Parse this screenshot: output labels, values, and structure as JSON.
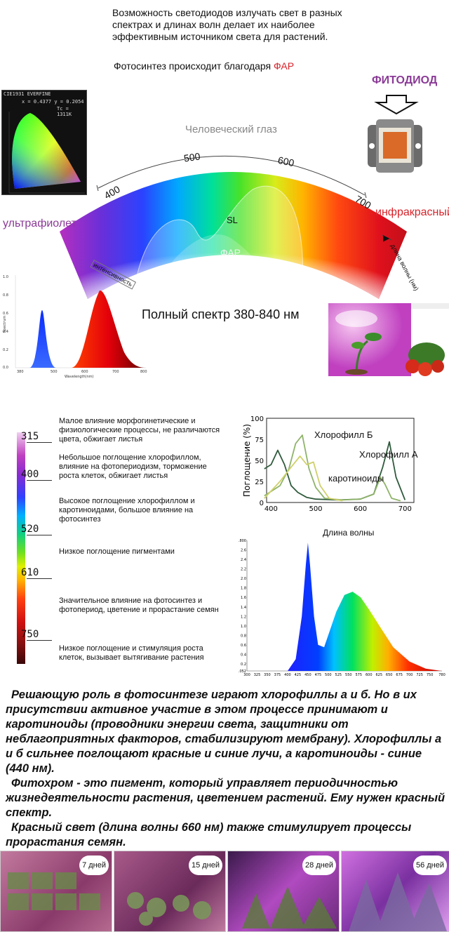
{
  "intro": "Возможность светодиодов излучать свет в разных спектрах и длинах волн делает их наиболее эффективным источником света для растений.",
  "photosynth": {
    "prefix": "Фотосинтез происходит благодаря ",
    "far": "ФАР"
  },
  "fitodiod": "ФИТОДИОД",
  "cie": {
    "header": "CIE1931 EVERFINE",
    "coords": "x = 0.4377  y = 0.2054",
    "tc": "Tc = 1311K"
  },
  "rainbow": {
    "eye": "Человеческий глаз",
    "uv": "ультрафиолет",
    "ir": "инфракрасный",
    "ticks": [
      "400",
      "500",
      "600",
      "700"
    ],
    "intensity": "интенсивность",
    "wavelength": "длина волны (нм)",
    "sl": "SL",
    "far": "ФАР"
  },
  "full_spectrum": "Полный спектр 380-840 нм",
  "small_chart": {
    "yticks": [
      "1.0",
      "0.8",
      "0.6",
      "0.4",
      "0.2",
      "0.0"
    ],
    "xticks": [
      "380",
      "500",
      "600",
      "700",
      "800"
    ],
    "xlabel": "Wavelength(nm)",
    "ylabel": "Spectrum"
  },
  "scale": {
    "ticks": [
      "315",
      "400",
      "520",
      "610",
      "750"
    ],
    "descriptions": [
      "Малое влияние морфогинетические и физиологические процессы, не различаются цвета, обжигает листья",
      "Небольшое поглощение хлорофиллом, влияние на фотопериодизм, торможение роста клеток, обжигает листья",
      "Высокое поглощение хлорофиллом и каротиноидами, большое влияние на фотосинтез",
      "Низкое поглощение пигментами",
      "Значительное влияние на фотосинтез и фотопериод, цветение и прорастание семян",
      "Низкое поглощение и стимуляция роста клеток, вызывает вытягивание растения"
    ]
  },
  "chart_data": [
    {
      "type": "line",
      "xlabel": "Длина волны",
      "ylabel": "Поглощение (%)",
      "xlim": [
        390,
        720
      ],
      "ylim": [
        0,
        100
      ],
      "xticks": [
        "400",
        "500",
        "600",
        "700"
      ],
      "yticks": [
        "100",
        "75",
        "50",
        "25",
        "0"
      ],
      "series": [
        {
          "name": "Хлорофилл А",
          "color": "#2f5a3c",
          "x": [
            385,
            400,
            415,
            430,
            445,
            460,
            480,
            500,
            550,
            600,
            630,
            650,
            665,
            680,
            700
          ],
          "y": [
            40,
            45,
            62,
            45,
            20,
            12,
            6,
            4,
            3,
            4,
            10,
            42,
            72,
            30,
            3
          ]
        },
        {
          "name": "Хлорофилл Б",
          "color": "#8fb36a",
          "x": [
            385,
            420,
            440,
            455,
            470,
            485,
            500,
            520,
            560,
            600,
            630,
            645,
            655,
            670,
            690
          ],
          "y": [
            8,
            20,
            40,
            70,
            80,
            40,
            18,
            5,
            3,
            4,
            10,
            30,
            22,
            5,
            2
          ]
        },
        {
          "name": "каротиноиды",
          "color": "#cfd06a",
          "x": [
            385,
            420,
            445,
            465,
            480,
            495,
            510,
            530,
            560
          ],
          "y": [
            5,
            25,
            42,
            55,
            45,
            48,
            20,
            5,
            2
          ]
        }
      ]
    },
    {
      "type": "area",
      "xlim": [
        300,
        780
      ],
      "ylim": [
        0.052,
        2.8
      ],
      "xticks": [
        "300",
        "325",
        "350",
        "375",
        "400",
        "425",
        "450",
        "475",
        "500",
        "525",
        "550",
        "575",
        "600",
        "625",
        "650",
        "675",
        "700",
        "725",
        "750",
        "780"
      ],
      "yticks": [
        "2.800",
        "2.6",
        "2.4",
        "2.2",
        "2.0",
        "1.8",
        "1.6",
        "1.4",
        "1.2",
        "1.0",
        "0.8",
        "0.6",
        "0.4",
        "0.2",
        "0.052"
      ],
      "series": [
        {
          "name": "",
          "x": [
            400,
            420,
            435,
            445,
            450,
            455,
            465,
            475,
            490,
            500,
            520,
            540,
            560,
            580,
            600,
            630,
            660,
            700,
            740,
            780
          ],
          "y": [
            0.05,
            0.3,
            1.2,
            2.3,
            2.75,
            2.3,
            1.2,
            0.6,
            0.55,
            0.8,
            1.3,
            1.65,
            1.72,
            1.6,
            1.35,
            0.95,
            0.55,
            0.25,
            0.1,
            0.05
          ]
        }
      ]
    }
  ],
  "body_text": {
    "p1": "Решающую роль в фотосинтезе играют хлорофиллы а и б. Но в их присутствии активное участие в этом процессе принимают и каротиноиды (проводники энергии света, защитники от неблагоприятных факторов, стабилизируют мембрану). Хлорофиллы а и б сильнее поглощают красные и синие лучи, а каротиноиды - синие (440 нм).",
    "p2": "Фитохром - это пигмент, который управляет периодичностью жизнедеятельности растения, цветением растений. Ему нужен красный спектр.",
    "p3": "Красный свет (длина волны 660 нм) также стимулирует процессы прорастания семян."
  },
  "photos": [
    {
      "label": "7 дней"
    },
    {
      "label": "15 дней"
    },
    {
      "label": "28 дней"
    },
    {
      "label": "56 дней"
    }
  ],
  "colors": {
    "far": "#d8232a",
    "uv": "#8b3a97",
    "ir": "#d8232a"
  }
}
